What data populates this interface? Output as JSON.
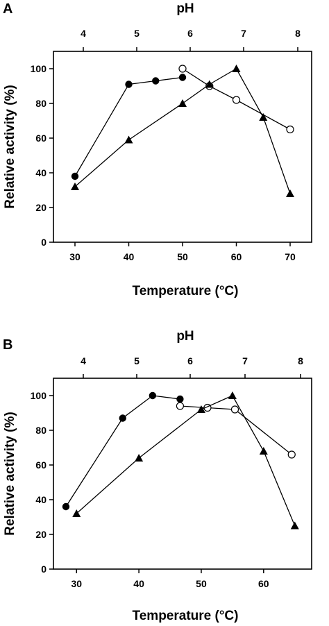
{
  "chart_data": [
    {
      "type": "line",
      "panel_label": "A",
      "xlabel": "Temperature (°C)",
      "ylabel": "Relative activity (%)",
      "top_axis_label": "pH",
      "xlim": [
        26,
        74
      ],
      "xticks": [
        30,
        40,
        50,
        60,
        70
      ],
      "ylim": [
        0,
        110
      ],
      "yticks": [
        0,
        20,
        40,
        60,
        80,
        100
      ],
      "top_ticks": [
        "4",
        "5",
        "6",
        "7",
        "8"
      ],
      "grid": false,
      "series": [
        {
          "marker": "filled-circle",
          "x": [
            30,
            40,
            45,
            50
          ],
          "y": [
            38,
            91,
            93,
            95
          ]
        },
        {
          "marker": "open-circle",
          "x": [
            50,
            55,
            60,
            70
          ],
          "y": [
            100,
            90,
            82,
            65
          ]
        },
        {
          "marker": "filled-triangle",
          "x": [
            30,
            40,
            50,
            55,
            60,
            65,
            70
          ],
          "y": [
            32,
            59,
            80,
            91,
            100,
            72,
            28
          ]
        }
      ]
    },
    {
      "type": "line",
      "panel_label": "B",
      "xlabel": "Temperature (°C)",
      "ylabel": "Relative activity (%)",
      "top_axis_label": "pH",
      "xlim": [
        26.3,
        67.7
      ],
      "xticks": [
        30,
        40,
        50,
        60
      ],
      "ylim": [
        0,
        110
      ],
      "yticks": [
        0,
        20,
        40,
        60,
        80,
        100
      ],
      "top_ticks": [
        "4",
        "5",
        "6",
        "7",
        "8"
      ],
      "grid": false,
      "series": [
        {
          "marker": "filled-circle",
          "x": [
            28.3,
            37.4,
            42.2,
            46.6
          ],
          "y": [
            36,
            87,
            100,
            98
          ]
        },
        {
          "marker": "open-circle",
          "x": [
            46.6,
            51.0,
            55.4,
            64.5
          ],
          "y": [
            94,
            93,
            92,
            66
          ]
        },
        {
          "marker": "filled-triangle",
          "x": [
            30,
            40,
            50,
            55,
            60,
            65
          ],
          "y": [
            32,
            64,
            92,
            100,
            68,
            25
          ]
        }
      ]
    }
  ]
}
